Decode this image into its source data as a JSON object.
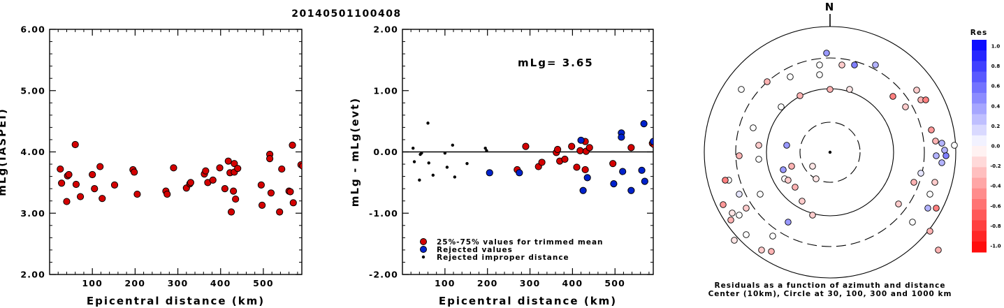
{
  "title": "20140501100408",
  "chart_data": [
    {
      "type": "scatter",
      "xlabel": "Epicentral distance (km)",
      "ylabel": "mLg(IASPEI)",
      "xlim": [
        0,
        590
      ],
      "ylim": [
        2.0,
        6.0
      ],
      "xticks": [
        100,
        200,
        300,
        400,
        500
      ],
      "yticks": [
        "2.00",
        "3.00",
        "4.00",
        "5.00",
        "6.00"
      ],
      "series": [
        {
          "color": "#d40000",
          "points": [
            [
              25,
              3.72
            ],
            [
              28,
              3.49
            ],
            [
              40,
              3.19
            ],
            [
              42,
              3.61
            ],
            [
              45,
              3.63
            ],
            [
              60,
              4.12
            ],
            [
              62,
              3.47
            ],
            [
              72,
              3.27
            ],
            [
              100,
              3.63
            ],
            [
              105,
              3.4
            ],
            [
              118,
              3.76
            ],
            [
              123,
              3.24
            ],
            [
              152,
              3.46
            ],
            [
              195,
              3.71
            ],
            [
              198,
              3.67
            ],
            [
              205,
              3.31
            ],
            [
              272,
              3.36
            ],
            [
              275,
              3.31
            ],
            [
              290,
              3.74
            ],
            [
              320,
              3.41
            ],
            [
              328,
              3.48
            ],
            [
              330,
              3.5
            ],
            [
              362,
              3.64
            ],
            [
              365,
              3.69
            ],
            [
              370,
              3.5
            ],
            [
              382,
              3.54
            ],
            [
              398,
              3.74
            ],
            [
              410,
              3.4
            ],
            [
              418,
              3.85
            ],
            [
              422,
              3.66
            ],
            [
              425,
              3.02
            ],
            [
              430,
              3.36
            ],
            [
              432,
              3.81
            ],
            [
              432,
              3.67
            ],
            [
              435,
              3.23
            ],
            [
              440,
              3.73
            ],
            [
              495,
              3.46
            ],
            [
              497,
              3.13
            ],
            [
              515,
              3.96
            ],
            [
              515,
              3.89
            ],
            [
              518,
              3.33
            ],
            [
              538,
              3.02
            ],
            [
              543,
              3.72
            ],
            [
              560,
              3.36
            ],
            [
              563,
              3.35
            ],
            [
              568,
              4.11
            ],
            [
              570,
              3.17
            ],
            [
              588,
              3.79
            ],
            [
              592,
              3.77
            ]
          ]
        }
      ]
    },
    {
      "type": "scatter",
      "xlabel": "Epicentral distance (km)",
      "ylabel": "mLg - mLg(evt)",
      "xlim": [
        0,
        590
      ],
      "ylim": [
        -2.0,
        2.0
      ],
      "xticks": [
        100,
        200,
        300,
        400,
        500
      ],
      "yticks": [
        "-2.00",
        "-1.00",
        "0.00",
        "1.00",
        "2.00"
      ],
      "annotation": "mLg= 3.65",
      "series": [
        {
          "name": "25%-75% values for trimmed mean",
          "color": "#d40000",
          "points": [
            [
              270,
              -0.29
            ],
            [
              290,
              0.09
            ],
            [
              320,
              -0.24
            ],
            [
              328,
              -0.17
            ],
            [
              362,
              -0.01
            ],
            [
              365,
              0.04
            ],
            [
              370,
              -0.15
            ],
            [
              382,
              -0.12
            ],
            [
              398,
              0.09
            ],
            [
              410,
              -0.25
            ],
            [
              418,
              0.02
            ],
            [
              430,
              0.17
            ],
            [
              430,
              -0.29
            ],
            [
              432,
              0.01
            ],
            [
              440,
              0.07
            ],
            [
              495,
              -0.19
            ],
            [
              538,
              0.07
            ],
            [
              588,
              0.14
            ],
            [
              592,
              0.12
            ]
          ]
        },
        {
          "name": "Rejected values",
          "color": "#0022cc",
          "points": [
            [
              205,
              -0.34
            ],
            [
              275,
              -0.34
            ],
            [
              420,
              0.19
            ],
            [
              425,
              -0.63
            ],
            [
              435,
              -0.42
            ],
            [
              497,
              -0.52
            ],
            [
              515,
              0.31
            ],
            [
              515,
              0.24
            ],
            [
              518,
              -0.32
            ],
            [
              538,
              -0.63
            ],
            [
              563,
              -0.3
            ],
            [
              568,
              0.46
            ],
            [
              570,
              -0.48
            ],
            [
              590,
              0.17
            ]
          ]
        },
        {
          "name": "Rejected improper distance",
          "color": "#000000",
          "points": [
            [
              25,
              0.06
            ],
            [
              28,
              -0.16
            ],
            [
              40,
              -0.46
            ],
            [
              42,
              -0.04
            ],
            [
              45,
              -0.02
            ],
            [
              60,
              0.47
            ],
            [
              62,
              -0.18
            ],
            [
              72,
              -0.38
            ],
            [
              100,
              -0.02
            ],
            [
              105,
              -0.25
            ],
            [
              118,
              0.11
            ],
            [
              123,
              -0.41
            ],
            [
              152,
              -0.19
            ],
            [
              195,
              0.06
            ],
            [
              198,
              0.02
            ]
          ]
        }
      ]
    },
    {
      "type": "scatter",
      "subtype": "polar",
      "north_label": "N",
      "caption_line1": "Residuals as a function of azimuth and distance",
      "caption_line2": "Center (10km), Circle at 30, 100, 300 and 1000 km",
      "colorbar_title": "Res",
      "colorbar_ticks": [
        "1.0",
        "0.8",
        "0.6",
        "0.4",
        "0.2",
        "0.0",
        "-0.2",
        "-0.4",
        "-0.6",
        "-0.8",
        "-1.0"
      ],
      "colorbar_range": [
        -1.0,
        1.0
      ],
      "points": [
        [
          178,
          10,
          0.0
        ],
        [
          17,
          125,
          -0.2
        ],
        [
          -15,
          125,
          0.0
        ],
        [
          -15,
          111,
          0.0
        ],
        [
          -5,
          142,
          0.4
        ],
        [
          35,
          125,
          0.5
        ],
        [
          65,
          125,
          0.3
        ],
        [
          90,
          80,
          -0.5
        ],
        [
          108,
          65,
          -0.2
        ],
        [
          155,
          -140,
          -0.3
        ],
        [
          143,
          -113,
          -0.3
        ],
        [
          118,
          -100,
          0.0
        ],
        [
          98,
          -74,
          -0.2
        ],
        [
          -60,
          -100,
          0.4
        ],
        [
          -84,
          -142,
          -0.3
        ],
        [
          -98,
          -140,
          -0.2
        ],
        [
          -142,
          -97,
          -0.3
        ],
        [
          -140,
          -87,
          -0.1
        ],
        [
          -120,
          -118,
          0.0
        ],
        [
          -137,
          -126,
          -0.1
        ],
        [
          -102,
          -10,
          0.0
        ],
        [
          -130,
          -60,
          0.1
        ],
        [
          -130,
          -90,
          0.0
        ],
        [
          -90,
          101,
          -0.3
        ],
        [
          -57,
          108,
          0.0
        ],
        [
          -43,
          81,
          -0.3
        ],
        [
          0,
          90,
          -0.3
        ],
        [
          28,
          90,
          -0.1
        ],
        [
          -25,
          -90,
          -0.2
        ],
        [
          -25,
          -20,
          -0.1
        ],
        [
          -55,
          -20,
          -0.3
        ],
        [
          -50,
          -50,
          -0.3
        ],
        [
          -67,
          -25,
          0.4
        ],
        [
          -65,
          -38,
          0.0
        ],
        [
          -20,
          -38,
          -0.1
        ],
        [
          -100,
          -60,
          0.0
        ],
        [
          -40,
          -70,
          -0.2
        ],
        [
          -60,
          -40,
          -0.2
        ],
        [
          -62,
          10,
          0.4
        ],
        [
          -70,
          65,
          0.0
        ],
        [
          -120,
          -80,
          -0.2
        ],
        [
          -145,
          -40,
          0.0
        ],
        [
          -127,
          90,
          0.0
        ],
        [
          -110,
          35,
          0.0
        ],
        [
          -82,
          -120,
          0.0
        ],
        [
          -130,
          -5,
          -0.3
        ],
        [
          -150,
          -40,
          -0.5
        ],
        [
          -153,
          -75,
          -0.4
        ],
        [
          -102,
          10,
          -0.2
        ],
        [
          124,
          89,
          -0.2
        ],
        [
          130,
          75,
          -0.3
        ],
        [
          137,
          75,
          -0.5
        ],
        [
          145,
          32,
          -0.4
        ],
        [
          151,
          16,
          -0.3
        ],
        [
          160,
          13,
          0.3
        ],
        [
          164,
          3,
          0.3
        ],
        [
          166,
          -5,
          0.5
        ],
        [
          160,
          -15,
          0.3
        ],
        [
          152,
          -5,
          0.3
        ],
        [
          150,
          -43,
          -0.2
        ],
        [
          143,
          -60,
          0.0
        ],
        [
          120,
          -43,
          -0.3
        ],
        [
          130,
          -30,
          0.1
        ],
        [
          140,
          -80,
          0.3
        ],
        [
          152,
          -80,
          -0.5
        ]
      ]
    }
  ]
}
